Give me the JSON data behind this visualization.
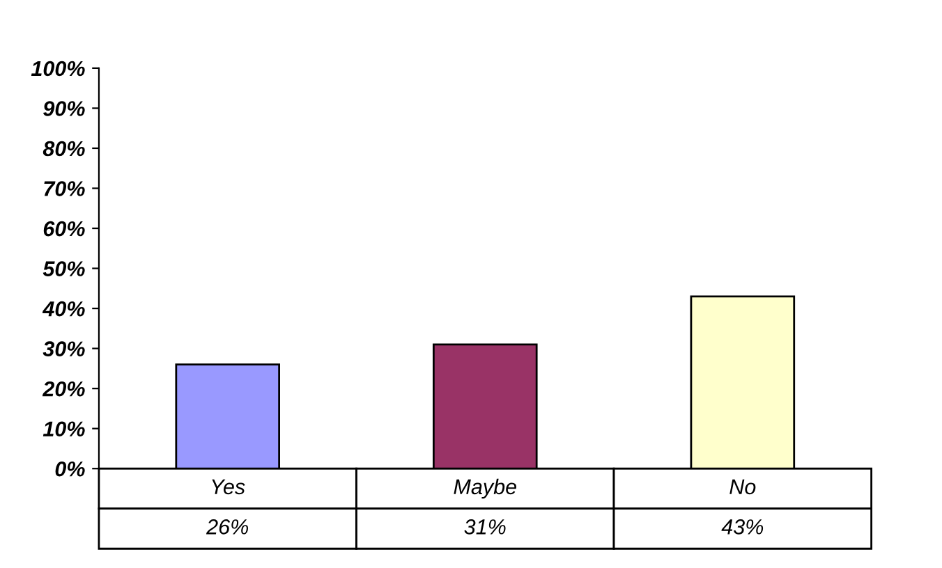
{
  "chart_data": {
    "type": "bar",
    "categories": [
      "Yes",
      "Maybe",
      "No"
    ],
    "values": [
      26,
      31,
      43
    ],
    "value_labels": [
      "26%",
      "31%",
      "43%"
    ],
    "colors": [
      "#9999ff",
      "#993366",
      "#ffffcc"
    ],
    "ylim": [
      0,
      100
    ],
    "yticks": [
      {
        "value": 0,
        "label": "0%"
      },
      {
        "value": 10,
        "label": "10%"
      },
      {
        "value": 20,
        "label": "20%"
      },
      {
        "value": 30,
        "label": "30%"
      },
      {
        "value": 40,
        "label": "40%"
      },
      {
        "value": 50,
        "label": "50%"
      },
      {
        "value": 60,
        "label": "60%"
      },
      {
        "value": 70,
        "label": "70%"
      },
      {
        "value": 80,
        "label": "80%"
      },
      {
        "value": 90,
        "label": "90%"
      },
      {
        "value": 100,
        "label": "100%"
      }
    ],
    "grid": false,
    "legend": false
  }
}
